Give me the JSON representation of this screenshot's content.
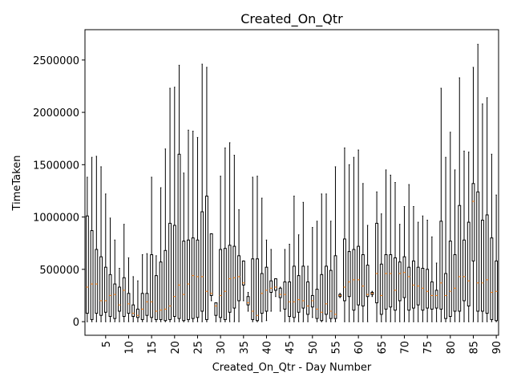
{
  "chart_data": {
    "type": "box",
    "title": "Created_On_Qtr",
    "x_label": "Created_On_Qtr - Day Number",
    "y_label": "TimeTaken",
    "x": [
      1,
      2,
      3,
      4,
      5,
      6,
      7,
      8,
      9,
      10,
      11,
      12,
      13,
      14,
      15,
      16,
      17,
      18,
      19,
      20,
      21,
      22,
      23,
      24,
      25,
      26,
      27,
      28,
      29,
      30,
      31,
      32,
      33,
      34,
      35,
      36,
      37,
      38,
      39,
      40,
      41,
      42,
      43,
      44,
      45,
      46,
      47,
      48,
      49,
      50,
      51,
      52,
      53,
      54,
      55,
      56,
      57,
      58,
      59,
      60,
      61,
      62,
      63,
      64,
      65,
      66,
      67,
      68,
      69,
      70,
      71,
      72,
      73,
      74,
      75,
      76,
      77,
      78,
      79,
      80,
      81,
      82,
      83,
      84,
      85,
      86,
      87,
      88,
      89,
      90
    ],
    "whislo": [
      0,
      0,
      0,
      0,
      0,
      0,
      0,
      0,
      0,
      0,
      0,
      0,
      0,
      0,
      0,
      0,
      0,
      0,
      0,
      0,
      0,
      0,
      0,
      0,
      0,
      0,
      0,
      200000,
      0,
      0,
      0,
      0,
      0,
      0,
      200000,
      100000,
      0,
      0,
      0,
      10000,
      100000,
      240000,
      100000,
      0,
      0,
      0,
      0,
      0,
      0,
      40000,
      0,
      0,
      0,
      0,
      0,
      230000,
      0,
      0,
      0,
      0,
      0,
      0,
      240000,
      0,
      0,
      0,
      0,
      0,
      0,
      0,
      0,
      0,
      0,
      0,
      0,
      0,
      0,
      0,
      0,
      0,
      0,
      0,
      0,
      0,
      0,
      0,
      0,
      0,
      0,
      0
    ],
    "q1": [
      80000,
      20000,
      80000,
      60000,
      90000,
      50000,
      30000,
      100000,
      50000,
      80000,
      50000,
      40000,
      20000,
      60000,
      40000,
      20000,
      20000,
      10000,
      20000,
      50000,
      30000,
      10000,
      20000,
      30000,
      40000,
      100000,
      20000,
      250000,
      60000,
      40000,
      20000,
      90000,
      130000,
      200000,
      350000,
      160000,
      20000,
      10000,
      80000,
      100000,
      280000,
      300000,
      230000,
      120000,
      50000,
      40000,
      90000,
      130000,
      70000,
      140000,
      30000,
      10000,
      70000,
      30000,
      30000,
      240000,
      200000,
      240000,
      110000,
      160000,
      150000,
      240000,
      260000,
      180000,
      70000,
      120000,
      140000,
      110000,
      200000,
      230000,
      110000,
      130000,
      160000,
      110000,
      130000,
      120000,
      130000,
      120000,
      30000,
      50000,
      100000,
      100000,
      200000,
      150000,
      580000,
      100000,
      100000,
      80000,
      20000,
      10000
    ],
    "med": [
      330000,
      360000,
      360000,
      200000,
      200000,
      250000,
      260000,
      160000,
      300000,
      170000,
      80000,
      60000,
      120000,
      190000,
      190000,
      100000,
      110000,
      120000,
      150000,
      240000,
      350000,
      260000,
      360000,
      440000,
      430000,
      430000,
      290000,
      270000,
      150000,
      250000,
      290000,
      410000,
      420000,
      430000,
      370000,
      180000,
      100000,
      60000,
      270000,
      300000,
      320000,
      330000,
      260000,
      260000,
      190000,
      190000,
      210000,
      200000,
      150000,
      200000,
      120000,
      90000,
      170000,
      100000,
      70000,
      250000,
      330000,
      380000,
      400000,
      400000,
      340000,
      260000,
      270000,
      460000,
      250000,
      460000,
      460000,
      300000,
      460000,
      470000,
      430000,
      350000,
      340000,
      320000,
      290000,
      250000,
      250000,
      370000,
      250000,
      290000,
      320000,
      430000,
      430000,
      390000,
      1150000,
      370000,
      370000,
      400000,
      280000,
      290000
    ],
    "q3": [
      1010000,
      870000,
      690000,
      620000,
      520000,
      450000,
      360000,
      330000,
      420000,
      270000,
      160000,
      120000,
      270000,
      270000,
      640000,
      440000,
      570000,
      680000,
      940000,
      920000,
      1600000,
      770000,
      780000,
      800000,
      780000,
      1050000,
      1200000,
      840000,
      180000,
      690000,
      700000,
      730000,
      720000,
      630000,
      580000,
      240000,
      600000,
      600000,
      460000,
      520000,
      390000,
      410000,
      320000,
      380000,
      380000,
      530000,
      440000,
      530000,
      380000,
      250000,
      310000,
      450000,
      530000,
      490000,
      630000,
      260000,
      790000,
      670000,
      690000,
      720000,
      640000,
      540000,
      280000,
      940000,
      550000,
      640000,
      640000,
      610000,
      570000,
      620000,
      520000,
      580000,
      520000,
      510000,
      500000,
      380000,
      300000,
      960000,
      460000,
      770000,
      640000,
      1110000,
      780000,
      950000,
      1320000,
      1240000,
      970000,
      1020000,
      800000,
      580000
    ],
    "whishi": [
      1380000,
      1570000,
      1580000,
      1480000,
      1220000,
      990000,
      780000,
      510000,
      930000,
      610000,
      430000,
      390000,
      640000,
      650000,
      1380000,
      630000,
      1280000,
      1650000,
      2230000,
      2240000,
      2450000,
      1420000,
      1830000,
      1820000,
      1760000,
      2460000,
      2430000,
      840000,
      180000,
      1390000,
      1660000,
      1710000,
      1590000,
      1070000,
      580000,
      280000,
      1380000,
      1390000,
      1180000,
      780000,
      690000,
      410000,
      330000,
      690000,
      740000,
      1200000,
      830000,
      1140000,
      530000,
      900000,
      960000,
      1220000,
      1220000,
      960000,
      1480000,
      270000,
      1660000,
      1500000,
      1570000,
      1640000,
      1320000,
      920000,
      290000,
      1240000,
      1030000,
      1450000,
      1400000,
      1330000,
      930000,
      1100000,
      1310000,
      1100000,
      950000,
      1010000,
      970000,
      810000,
      560000,
      2230000,
      1570000,
      1810000,
      1450000,
      2330000,
      1630000,
      1620000,
      2430000,
      2650000,
      2080000,
      2140000,
      1600000,
      1210000
    ],
    "box_color": "#000000",
    "median_color": "#ff7f0e",
    "xlim": [
      0.5,
      90.5
    ],
    "xticks": [
      5,
      10,
      15,
      20,
      25,
      30,
      35,
      40,
      45,
      50,
      55,
      60,
      65,
      70,
      75,
      80,
      85,
      90
    ],
    "ylim": [
      -130000,
      2790000
    ],
    "yticks": [
      0,
      500000,
      1000000,
      1500000,
      2000000,
      2500000
    ]
  }
}
